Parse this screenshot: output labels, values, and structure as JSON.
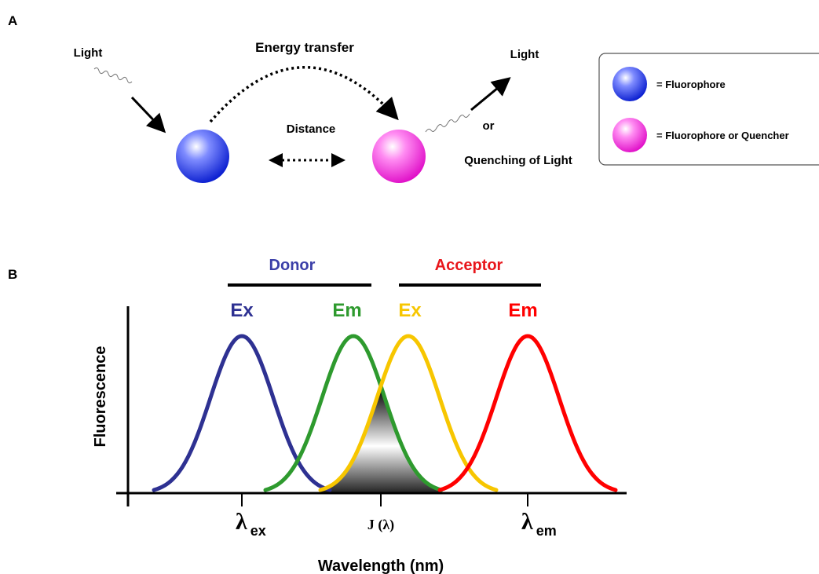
{
  "panel_a": {
    "label": "A",
    "light_in": "Light",
    "energy_transfer": "Energy transfer",
    "light_out": "Light",
    "distance": "Distance",
    "or": "or",
    "quenching": "Quenching of Light",
    "legend": [
      "= Fluorophore",
      "= Fluorophore or Quencher"
    ]
  },
  "panel_b": {
    "label": "B",
    "donor": {
      "title": "Donor",
      "ex": "Ex",
      "em": "Em"
    },
    "acceptor": {
      "title": "Acceptor",
      "ex": "Ex",
      "em": "Em"
    },
    "y_label": "Fluorescence",
    "x_label": "Wavelength (nm)",
    "ticks": [
      {
        "symbol": "λ",
        "sub": "ex"
      },
      {
        "symbol": "J (λ)"
      },
      {
        "symbol": "λ",
        "sub": "em"
      }
    ]
  }
}
